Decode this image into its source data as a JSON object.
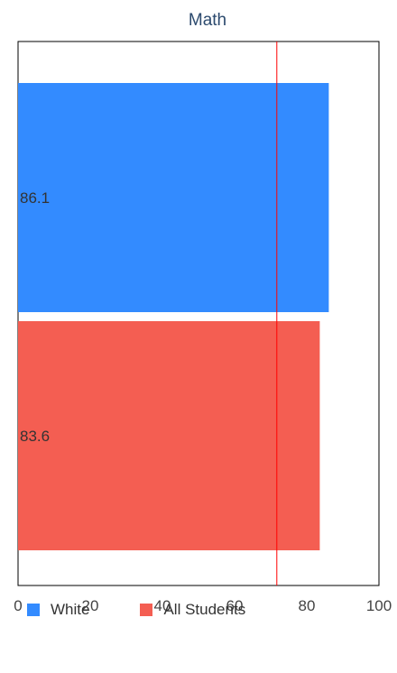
{
  "chart_data": {
    "type": "bar",
    "orientation": "horizontal",
    "title": "Math",
    "xlabel": "",
    "ylabel": "",
    "xlim": [
      0,
      100
    ],
    "xticks": [
      "0",
      "20",
      "40",
      "60",
      "80",
      "100"
    ],
    "reference_line": {
      "value": 71.7,
      "color": "#ff0000"
    },
    "grid": false,
    "legend_position": "bottom",
    "series": [
      {
        "name": "White",
        "value": 86.1,
        "label": "86.1",
        "color": "#338bff"
      },
      {
        "name": "All Students",
        "value": 83.6,
        "label": "83.6",
        "color": "#f45e52"
      }
    ]
  }
}
